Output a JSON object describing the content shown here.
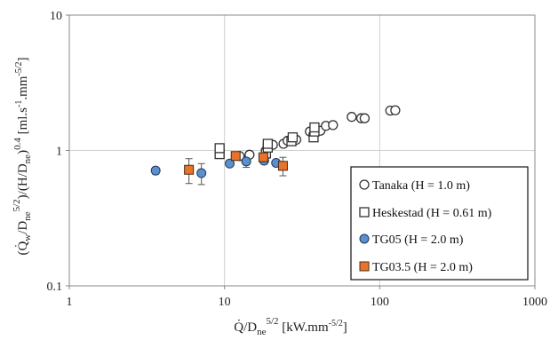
{
  "chart_data": {
    "type": "scatter",
    "xscale": "log",
    "yscale": "log",
    "xlim": [
      1,
      1000
    ],
    "ylim": [
      0.1,
      10
    ],
    "x_ticks": [
      "1",
      "10",
      "100",
      "1000"
    ],
    "y_ticks": [
      "0.1",
      "1",
      "10"
    ],
    "grid": true,
    "legend_position": "bottom-right",
    "xlabel": {
      "a": "Q̇/D",
      "sub": "ne",
      "sup": "5/2",
      "b": " [kW.mm",
      "sup2": "-5/2",
      "c": "]"
    },
    "ylabel": {
      "a": "(Q̇",
      "s1": "w",
      "b": "/D",
      "s2": "ne",
      "p1": "5/2",
      "c": ")/(H/D",
      "s3": "ne",
      "d": ")",
      "p2": "0.4",
      "e": " [ml.s",
      "p3": "-1",
      "f": ".mm",
      "p4": "-5/2",
      "g": "]"
    },
    "series": [
      {
        "name": "Tanaka (H = 1.0 m)",
        "marker": "circle-open",
        "stroke": "#333333",
        "fill": "#ffffff",
        "points": [
          {
            "x": 12.5,
            "y": 0.91
          },
          {
            "x": 14.5,
            "y": 0.93
          },
          {
            "x": 18.5,
            "y": 1.0
          },
          {
            "x": 20.5,
            "y": 1.1
          },
          {
            "x": 24.0,
            "y": 1.12
          },
          {
            "x": 25.5,
            "y": 1.18
          },
          {
            "x": 29.0,
            "y": 1.2
          },
          {
            "x": 35.5,
            "y": 1.38
          },
          {
            "x": 37.5,
            "y": 1.3
          },
          {
            "x": 41.5,
            "y": 1.4
          },
          {
            "x": 45.0,
            "y": 1.52
          },
          {
            "x": 50.0,
            "y": 1.54
          },
          {
            "x": 66.0,
            "y": 1.77
          },
          {
            "x": 76.0,
            "y": 1.73
          },
          {
            "x": 80.0,
            "y": 1.73
          },
          {
            "x": 117.0,
            "y": 1.97
          },
          {
            "x": 126.0,
            "y": 1.98
          }
        ]
      },
      {
        "name": "Heskestad (H = 0.61 m)",
        "marker": "square-open",
        "stroke": "#333333",
        "fill": "#ffffff",
        "points": [
          {
            "x": 9.3,
            "y": 0.94
          },
          {
            "x": 9.3,
            "y": 1.04
          },
          {
            "x": 18.5,
            "y": 0.95
          },
          {
            "x": 19.0,
            "y": 1.05
          },
          {
            "x": 19.0,
            "y": 1.12
          },
          {
            "x": 27.0,
            "y": 1.17
          },
          {
            "x": 27.5,
            "y": 1.25
          },
          {
            "x": 37.5,
            "y": 1.25
          },
          {
            "x": 38.0,
            "y": 1.38
          },
          {
            "x": 38.0,
            "y": 1.48
          }
        ]
      },
      {
        "name": "TG05 (H = 2.0 m)",
        "marker": "circle-filled",
        "stroke": "#1f3a5c",
        "fill": "#5b8fcd",
        "points": [
          {
            "x": 3.6,
            "y": 0.71,
            "err": 0.04
          },
          {
            "x": 7.1,
            "y": 0.68,
            "err": 0.12
          },
          {
            "x": 10.8,
            "y": 0.8,
            "err": 0.0
          },
          {
            "x": 13.8,
            "y": 0.83,
            "err": 0.08
          },
          {
            "x": 18.0,
            "y": 0.84,
            "err": 0.0
          },
          {
            "x": 21.5,
            "y": 0.81,
            "err": 0.0
          }
        ]
      },
      {
        "name": "TG03.5  (H = 2.0 m)",
        "marker": "square-filled",
        "stroke": "#4a2a10",
        "fill": "#e8742b",
        "points": [
          {
            "x": 5.9,
            "y": 0.72,
            "err": 0.15
          },
          {
            "x": 11.8,
            "y": 0.91,
            "err": 0.0
          },
          {
            "x": 17.8,
            "y": 0.89,
            "err": 0.06
          },
          {
            "x": 23.8,
            "y": 0.77,
            "err": 0.12
          }
        ]
      }
    ]
  }
}
